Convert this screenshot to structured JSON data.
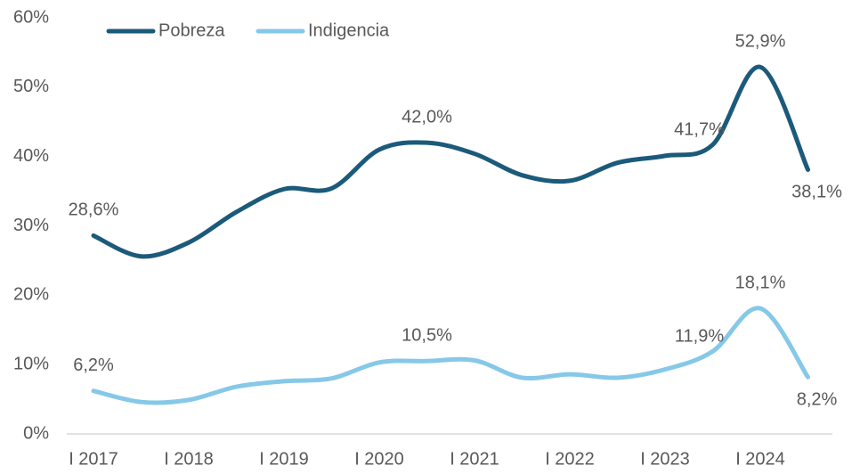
{
  "chart_data": {
    "type": "line",
    "categories": [
      "I 2017",
      null,
      "I 2018",
      null,
      "I 2019",
      null,
      "I 2020",
      null,
      "I 2021",
      null,
      "I 2022",
      null,
      "I 2023",
      null,
      "I 2024",
      null
    ],
    "series": [
      {
        "name": "Pobreza",
        "color": "#1b5a7a",
        "values": [
          28.6,
          25.6,
          27.6,
          32.0,
          35.3,
          35.4,
          41.0,
          42.0,
          40.4,
          37.3,
          36.5,
          39.1,
          40.1,
          41.7,
          52.9,
          38.1
        ],
        "value_labels": [
          "28,6%",
          null,
          null,
          null,
          null,
          null,
          null,
          "42,0%",
          null,
          null,
          null,
          null,
          null,
          "41,7%",
          "52,9%",
          "38,1%"
        ]
      },
      {
        "name": "Indigencia",
        "color": "#86c8e8",
        "values": [
          6.2,
          4.6,
          4.9,
          6.8,
          7.6,
          8.0,
          10.3,
          10.5,
          10.6,
          8.1,
          8.6,
          8.1,
          9.3,
          11.9,
          18.1,
          8.2
        ],
        "value_labels": [
          "6,2%",
          null,
          null,
          null,
          null,
          null,
          null,
          "10,5%",
          null,
          null,
          null,
          null,
          null,
          "11,9%",
          "18,1%",
          "8,2%"
        ]
      }
    ],
    "ylim": [
      0,
      60
    ],
    "yticks": [
      {
        "value": 0,
        "label": "0%"
      },
      {
        "value": 10,
        "label": "10%"
      },
      {
        "value": 20,
        "label": "20%"
      },
      {
        "value": 30,
        "label": "30%"
      },
      {
        "value": 40,
        "label": "40%"
      },
      {
        "value": 50,
        "label": "50%"
      },
      {
        "value": 60,
        "label": "60%"
      }
    ],
    "grid": false
  }
}
